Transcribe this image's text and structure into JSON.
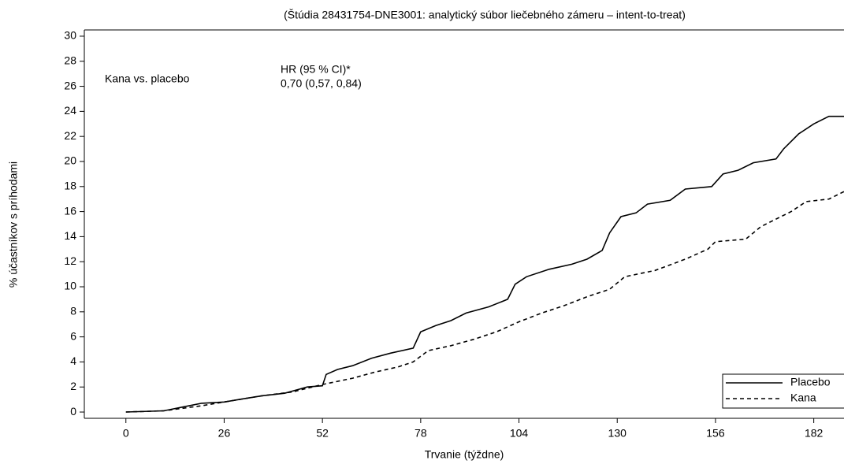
{
  "chart_data": {
    "type": "line",
    "title": "(Štúdia 28431754-DNE3001: analytický súbor liečebného zámeru – intent-to-treat)",
    "x_label": "Trvanie (týždne)",
    "y_label": "% účastníkov s príhodami",
    "annotations": [
      "Kana vs. placebo",
      "HR (95 % CI)*",
      "0,70 (0,57, 0,84)"
    ],
    "xlim": [
      -11,
      190
    ],
    "ylim": [
      -0.5,
      30.5
    ],
    "xticks": [
      0,
      26,
      52,
      78,
      104,
      130,
      156,
      182
    ],
    "yticks": [
      0,
      2,
      4,
      6,
      8,
      10,
      12,
      14,
      16,
      18,
      20,
      22,
      24,
      26,
      28,
      30
    ],
    "legend": "lower right",
    "series": [
      {
        "name": "Placebo",
        "color": "#000000",
        "dash": "solid",
        "x": [
          0,
          10,
          15,
          20,
          26,
          30,
          36,
          42,
          48,
          52,
          53,
          56,
          60,
          65,
          70,
          76,
          78,
          82,
          86,
          90,
          96,
          101,
          103,
          106,
          112,
          118,
          122,
          126,
          128,
          131,
          135,
          138,
          144,
          148,
          155,
          158,
          162,
          166,
          172,
          174,
          178,
          182,
          186,
          190
        ],
        "values": [
          0,
          0.1,
          0.4,
          0.7,
          0.8,
          1.0,
          1.3,
          1.5,
          2.0,
          2.1,
          3.0,
          3.4,
          3.7,
          4.3,
          4.7,
          5.1,
          6.4,
          6.9,
          7.3,
          7.9,
          8.4,
          9.0,
          10.2,
          10.8,
          11.4,
          11.8,
          12.2,
          12.9,
          14.3,
          15.6,
          15.9,
          16.6,
          16.9,
          17.8,
          18.0,
          19.0,
          19.3,
          19.9,
          20.2,
          21.0,
          22.2,
          23.0,
          23.6,
          23.6
        ]
      },
      {
        "name": "Kana",
        "color": "#000000",
        "dash": "dashed",
        "x": [
          0,
          10,
          20,
          26,
          36,
          44,
          52,
          60,
          66,
          72,
          76,
          80,
          86,
          92,
          98,
          104,
          110,
          116,
          122,
          128,
          132,
          140,
          148,
          154,
          156,
          164,
          168,
          172,
          176,
          180,
          186,
          190
        ],
        "values": [
          0,
          0.1,
          0.5,
          0.8,
          1.3,
          1.6,
          2.2,
          2.7,
          3.2,
          3.6,
          4.0,
          4.9,
          5.3,
          5.8,
          6.4,
          7.2,
          7.9,
          8.5,
          9.2,
          9.8,
          10.8,
          11.3,
          12.2,
          13.0,
          13.6,
          13.8,
          14.8,
          15.4,
          16.0,
          16.8,
          17.0,
          17.6
        ]
      }
    ]
  }
}
